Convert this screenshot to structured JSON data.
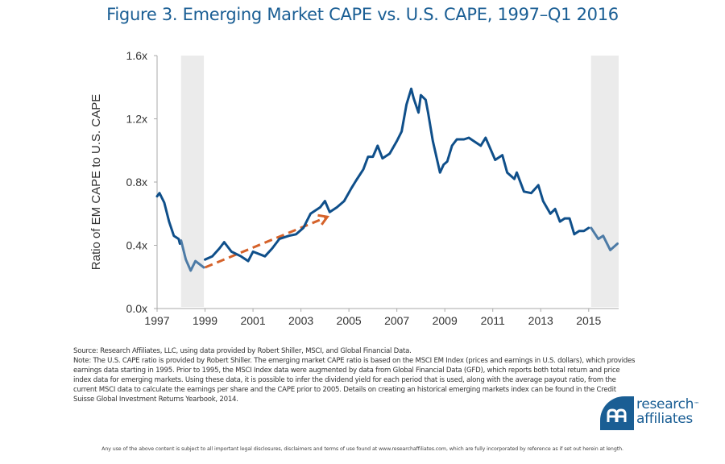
{
  "title": "Figure 3. Emerging Market CAPE vs. U.S. CAPE, 1997–Q1 2016",
  "colors": {
    "line": "#0f4f8a",
    "line_shaded": "#4d7ba6",
    "trend_arrow": "#d5622a",
    "shade": "#ebebeb",
    "axis": "#aaaaaa",
    "brand": "#1a5e94"
  },
  "chart_data": {
    "type": "line",
    "title": "Figure 3. Emerging Market CAPE vs. U.S. CAPE, 1997–Q1 2016",
    "xlabel": "",
    "ylabel": "Ratio of EM CAPE to U.S. CAPE",
    "xlim": [
      1997,
      2016.25
    ],
    "ylim": [
      0,
      1.6
    ],
    "grid": false,
    "x_ticks": [
      1997,
      1999,
      2001,
      2003,
      2005,
      2007,
      2009,
      2011,
      2013,
      2015
    ],
    "x_tick_labels": [
      "1997",
      "1999",
      "2001",
      "2003",
      "2005",
      "2007",
      "2009",
      "2011",
      "2013",
      "2015"
    ],
    "y_ticks": [
      0,
      0.4,
      0.8,
      1.2,
      1.6
    ],
    "y_tick_labels": [
      "0.0x",
      "0.4x",
      "0.8x",
      "1.2x",
      "1.6x"
    ],
    "shaded_periods": [
      {
        "start": 1998.0,
        "end": 1998.95
      },
      {
        "start": 2015.1,
        "end": 2016.25
      }
    ],
    "series": [
      {
        "name": "EM CAPE / U.S. CAPE",
        "x": [
          1997.0,
          1997.1,
          1997.3,
          1997.5,
          1997.7,
          1997.9,
          1997.95,
          1998.0,
          1998.2,
          1998.4,
          1998.6,
          1998.95,
          1999.0,
          1999.3,
          1999.6,
          1999.8,
          2000.1,
          2000.5,
          2000.8,
          2001.0,
          2001.5,
          2001.8,
          2002.1,
          2002.5,
          2002.8,
          2003.1,
          2003.4,
          2003.8,
          2004.0,
          2004.2,
          2004.5,
          2004.8,
          2005.1,
          2005.3,
          2005.6,
          2005.8,
          2006.0,
          2006.2,
          2006.4,
          2006.7,
          2007.0,
          2007.2,
          2007.4,
          2007.6,
          2007.7,
          2007.9,
          2008.0,
          2008.2,
          2008.3,
          2008.5,
          2008.8,
          2008.95,
          2009.1,
          2009.3,
          2009.5,
          2009.8,
          2010.0,
          2010.2,
          2010.5,
          2010.7,
          2010.9,
          2011.1,
          2011.4,
          2011.6,
          2011.9,
          2012.0,
          2012.3,
          2012.6,
          2012.9,
          2013.1,
          2013.4,
          2013.6,
          2013.8,
          2014.0,
          2014.2,
          2014.4,
          2014.6,
          2014.8,
          2015.0,
          2015.1,
          2015.4,
          2015.6,
          2015.9,
          2016.2
        ],
        "values": [
          0.71,
          0.73,
          0.67,
          0.55,
          0.46,
          0.44,
          0.41,
          0.43,
          0.31,
          0.24,
          0.3,
          0.26,
          0.31,
          0.33,
          0.38,
          0.42,
          0.36,
          0.33,
          0.3,
          0.36,
          0.33,
          0.38,
          0.44,
          0.46,
          0.47,
          0.51,
          0.6,
          0.64,
          0.68,
          0.61,
          0.64,
          0.68,
          0.76,
          0.81,
          0.88,
          0.96,
          0.96,
          1.03,
          0.95,
          0.98,
          1.06,
          1.12,
          1.29,
          1.39,
          1.33,
          1.24,
          1.35,
          1.32,
          1.24,
          1.06,
          0.86,
          0.91,
          0.93,
          1.03,
          1.07,
          1.07,
          1.08,
          1.06,
          1.03,
          1.08,
          1.01,
          0.94,
          0.97,
          0.86,
          0.82,
          0.86,
          0.74,
          0.73,
          0.78,
          0.68,
          0.6,
          0.63,
          0.55,
          0.57,
          0.57,
          0.47,
          0.49,
          0.49,
          0.51,
          0.51,
          0.44,
          0.46,
          0.37,
          0.41
        ]
      }
    ],
    "annotations": [
      {
        "type": "dashed-arrow",
        "from": {
          "x": 1999.0,
          "y": 0.26
        },
        "to": {
          "x": 2004.1,
          "y": 0.58
        },
        "label": ""
      }
    ],
    "legend": "none"
  },
  "notes": {
    "source": "Source: Research Affiliates, LLC, using data provided by Robert Shiller, MSCI, and Global Financial Data.",
    "note": "Note: The U.S. CAPE ratio is provided by Robert Shiller. The emerging market CAPE ratio is based on the MSCI EM Index (prices and earnings in U.S. dollars), which provides earnings data starting in 1995. Prior to 1995, the MSCI Index data were augmented by data from Global Financial Data (GFD), which reports both total return and price index data for emerging markets. Using these data, it is possible to infer the dividend yield for each period that is used, along with the average payout ratio, from the current MSCI data to calculate the earnings per share and the CAPE prior to 2005. Details on creating an historical emerging markets index can be found in the Credit Suisse Global Investment Returns Yearbook, 2014."
  },
  "logo": {
    "line1": "research",
    "line2": "affiliates",
    "tm": "™",
    "icon": "ra-monogram-icon"
  },
  "footer": "Any use of the above content is subject to all important legal disclosures, disclaimers and terms of use found at www.researchaffiliates.com, which are fully incorporated by reference as if set out herein at length."
}
